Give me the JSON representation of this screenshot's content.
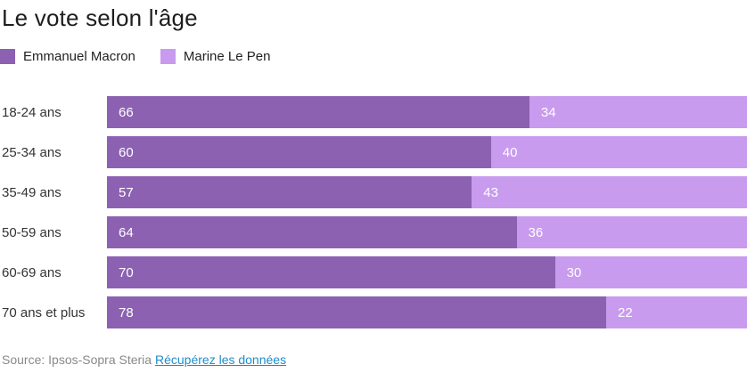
{
  "title": "Le vote selon l'âge",
  "legend": [
    {
      "label": "Emmanuel Macron",
      "color": "#8c61b2"
    },
    {
      "label": "Marine Le Pen",
      "color": "#c89bee"
    }
  ],
  "footer": {
    "source": "Source: Ipsos-Sopra Steria",
    "link_label": "Récupérez les données"
  },
  "chart_data": {
    "type": "bar",
    "orientation": "horizontal",
    "stacked": true,
    "categories": [
      "18-24 ans",
      "25-34 ans",
      "35-49 ans",
      "50-59 ans",
      "60-69 ans",
      "70 ans et plus"
    ],
    "series": [
      {
        "name": "Emmanuel Macron",
        "color": "#8c61b2",
        "values": [
          66,
          60,
          57,
          64,
          70,
          78
        ]
      },
      {
        "name": "Marine Le Pen",
        "color": "#c89bee",
        "values": [
          34,
          40,
          43,
          36,
          30,
          22
        ]
      }
    ],
    "title": "Le vote selon l'âge",
    "xlabel": "",
    "ylabel": "",
    "xlim": [
      0,
      100
    ],
    "value_labels": true,
    "grid": false,
    "legend_position": "top-left"
  }
}
